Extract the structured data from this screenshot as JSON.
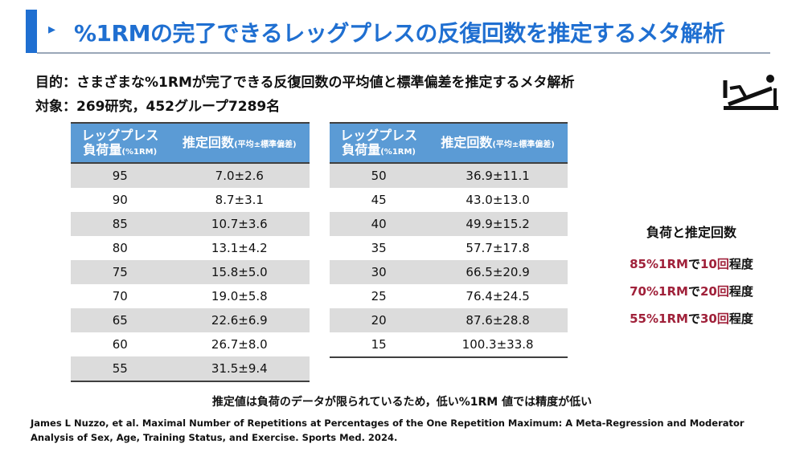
{
  "title": {
    "marker": "▸",
    "text": "%1RMの完了できるレッグプレスの反復回数を推定するメタ解析"
  },
  "purpose": "目的：さまざまな%1RMが完了できる反復回数の平均値と標準偏差を推定するメタ解析",
  "subjects": "対象：269研究，452グループ7289名",
  "table_headers": {
    "load_main": "レッグプレス",
    "load_sub": "負荷量",
    "load_unit": "(%1RM)",
    "reps_main": "推定回数",
    "reps_sub": "(平均±標準偏差)"
  },
  "left_table": [
    {
      "load": "95",
      "reps": "7.0±2.6"
    },
    {
      "load": "90",
      "reps": "8.7±3.1"
    },
    {
      "load": "85",
      "reps": "10.7±3.6"
    },
    {
      "load": "80",
      "reps": "13.1±4.2"
    },
    {
      "load": "75",
      "reps": "15.8±5.0"
    },
    {
      "load": "70",
      "reps": "19.0±5.8"
    },
    {
      "load": "65",
      "reps": "22.6±6.9"
    },
    {
      "load": "60",
      "reps": "26.7±8.0"
    },
    {
      "load": "55",
      "reps": "31.5±9.4"
    }
  ],
  "right_table": [
    {
      "load": "50",
      "reps": "36.9±11.1"
    },
    {
      "load": "45",
      "reps": "43.0±13.0"
    },
    {
      "load": "40",
      "reps": "49.9±15.2"
    },
    {
      "load": "35",
      "reps": "57.7±17.8"
    },
    {
      "load": "30",
      "reps": "66.5±20.9"
    },
    {
      "load": "25",
      "reps": "76.4±24.5"
    },
    {
      "load": "20",
      "reps": "87.6±28.8"
    },
    {
      "load": "15",
      "reps": "100.3±33.8"
    }
  ],
  "side_note": {
    "heading": "負荷と推定回数",
    "rows": [
      {
        "load": "85%1RM",
        "mid": "で",
        "count": "10回",
        "suffix": "程度"
      },
      {
        "load": "70%1RM",
        "mid": "で",
        "count": "20回",
        "suffix": "程度"
      },
      {
        "load": "55%1RM",
        "mid": "で",
        "count": "30回",
        "suffix": "程度"
      }
    ]
  },
  "bottom_note": "推定値は負荷のデータが限られているため，低い%1RM 値では精度が低い",
  "citation": "James L Nuzzo, et al. Maximal Number of Repetitions at Percentages of the One Repetition Maximum: A Meta-Regression and Moderator Analysis of Sex, Age, Training Status, and Exercise. Sports Med. 2024.",
  "colors": {
    "accent": "#1f6fd1",
    "header_fill": "#5b9bd5",
    "highlight": "#a0213a",
    "row_shade": "#dcdcdc"
  },
  "icons": [
    "leg-press-icon"
  ]
}
